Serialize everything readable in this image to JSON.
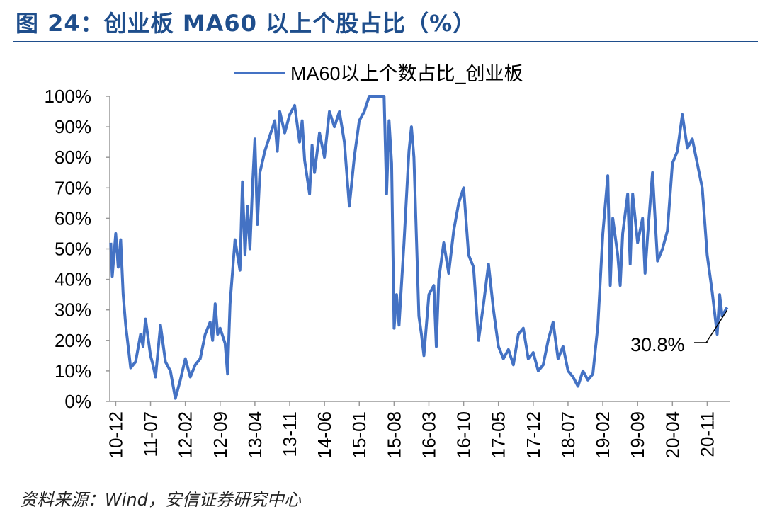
{
  "title": "图 24：创业板 MA60 以上个股占比（%）",
  "source": "资料来源：Wind，安信证券研究中心",
  "colors": {
    "series": "#4472C4",
    "title": "#1f4e8c"
  },
  "chart_data": {
    "type": "line",
    "legend": "top-center",
    "grid": false,
    "series": [
      {
        "name": "MA60以上个数占比_创业板",
        "points": [
          [
            "10-11",
            52
          ],
          [
            "10-11.3",
            41
          ],
          [
            "10-12",
            55
          ],
          [
            "10-12.5",
            44
          ],
          [
            "11-01",
            53
          ],
          [
            "11-01.5",
            35
          ],
          [
            "11-02",
            25
          ],
          [
            "11-02.5",
            18
          ],
          [
            "11-03",
            11
          ],
          [
            "11-04",
            13
          ],
          [
            "11-05",
            22
          ],
          [
            "11-05.5",
            18
          ],
          [
            "11-06",
            27
          ],
          [
            "11-07",
            15
          ],
          [
            "11-07.5",
            12
          ],
          [
            "11-08",
            8
          ],
          [
            "11-09",
            25
          ],
          [
            "11-10",
            13
          ],
          [
            "11-11",
            10
          ],
          [
            "11-12",
            1
          ],
          [
            "12-01",
            7
          ],
          [
            "12-02",
            14
          ],
          [
            "12-03",
            8
          ],
          [
            "12-04",
            12
          ],
          [
            "12-05",
            14
          ],
          [
            "12-06",
            22
          ],
          [
            "12-07",
            26
          ],
          [
            "12-07.5",
            20
          ],
          [
            "12-08",
            32
          ],
          [
            "12-08.5",
            22
          ],
          [
            "12-09",
            24
          ],
          [
            "12-10",
            19
          ],
          [
            "12-10.5",
            9
          ],
          [
            "12-11",
            32
          ],
          [
            "12-12",
            53
          ],
          [
            "13-01",
            43
          ],
          [
            "13-01.5",
            72
          ],
          [
            "13-02",
            48
          ],
          [
            "13-02.5",
            64
          ],
          [
            "13-03",
            50
          ],
          [
            "13-03.5",
            70
          ],
          [
            "13-04",
            86
          ],
          [
            "13-04.5",
            58
          ],
          [
            "13-05",
            75
          ],
          [
            "13-06",
            82
          ],
          [
            "13-07",
            87
          ],
          [
            "13-08",
            92
          ],
          [
            "13-08.5",
            82
          ],
          [
            "13-09",
            95
          ],
          [
            "13-10",
            88
          ],
          [
            "13-11",
            94
          ],
          [
            "13-12",
            97
          ],
          [
            "14-01",
            85
          ],
          [
            "14-01.5",
            92
          ],
          [
            "14-02",
            79
          ],
          [
            "14-03",
            68
          ],
          [
            "14-03.5",
            84
          ],
          [
            "14-04",
            75
          ],
          [
            "14-05",
            88
          ],
          [
            "14-06",
            80
          ],
          [
            "14-07",
            95
          ],
          [
            "14-08",
            90
          ],
          [
            "14-09",
            95
          ],
          [
            "14-10",
            85
          ],
          [
            "14-11",
            64
          ],
          [
            "14-12",
            80
          ],
          [
            "15-01",
            92
          ],
          [
            "15-02",
            95
          ],
          [
            "15-03",
            100
          ],
          [
            "15-04",
            100
          ],
          [
            "15-05",
            100
          ],
          [
            "15-06",
            100
          ],
          [
            "15-06.5",
            68
          ],
          [
            "15-07",
            92
          ],
          [
            "15-07.5",
            78
          ],
          [
            "15-08",
            24
          ],
          [
            "15-08.5",
            35
          ],
          [
            "15-09",
            25
          ],
          [
            "15-10",
            52
          ],
          [
            "15-11",
            82
          ],
          [
            "15-11.5",
            90
          ],
          [
            "15-12",
            80
          ],
          [
            "16-01",
            28
          ],
          [
            "16-01.5",
            22
          ],
          [
            "16-02",
            15
          ],
          [
            "16-03",
            35
          ],
          [
            "16-04",
            38
          ],
          [
            "16-04.5",
            18
          ],
          [
            "16-05",
            40
          ],
          [
            "16-06",
            52
          ],
          [
            "16-07",
            42
          ],
          [
            "16-08",
            56
          ],
          [
            "16-09",
            65
          ],
          [
            "16-10",
            70
          ],
          [
            "16-11",
            48
          ],
          [
            "16-12",
            44
          ],
          [
            "17-01",
            20
          ],
          [
            "17-02",
            32
          ],
          [
            "17-03",
            45
          ],
          [
            "17-04",
            30
          ],
          [
            "17-05",
            18
          ],
          [
            "17-06",
            14
          ],
          [
            "17-07",
            17
          ],
          [
            "17-08",
            12
          ],
          [
            "17-09",
            22
          ],
          [
            "17-10",
            24
          ],
          [
            "17-11",
            14
          ],
          [
            "17-12",
            16
          ],
          [
            "18-01",
            10
          ],
          [
            "18-02",
            12
          ],
          [
            "18-03",
            20
          ],
          [
            "18-04",
            26
          ],
          [
            "18-05",
            14
          ],
          [
            "18-06",
            18
          ],
          [
            "18-07",
            10
          ],
          [
            "18-08",
            8
          ],
          [
            "18-09",
            5
          ],
          [
            "18-10",
            10
          ],
          [
            "18-11",
            7
          ],
          [
            "18-12",
            9
          ],
          [
            "19-01",
            25
          ],
          [
            "19-02",
            55
          ],
          [
            "19-03",
            74
          ],
          [
            "19-03.5",
            38
          ],
          [
            "19-04",
            60
          ],
          [
            "19-05",
            48
          ],
          [
            "19-05.5",
            38
          ],
          [
            "19-06",
            55
          ],
          [
            "19-07",
            68
          ],
          [
            "19-07.5",
            45
          ],
          [
            "19-08",
            68
          ],
          [
            "19-09",
            52
          ],
          [
            "19-10",
            60
          ],
          [
            "19-10.5",
            42
          ],
          [
            "19-11",
            54
          ],
          [
            "19-12",
            75
          ],
          [
            "20-01",
            46
          ],
          [
            "20-02",
            50
          ],
          [
            "20-03",
            56
          ],
          [
            "20-04",
            78
          ],
          [
            "20-05",
            82
          ],
          [
            "20-06",
            94
          ],
          [
            "20-07",
            83
          ],
          [
            "20-08",
            86
          ],
          [
            "20-09",
            78
          ],
          [
            "20-10",
            70
          ],
          [
            "20-11",
            48
          ],
          [
            "20-12",
            36
          ],
          [
            "21-01",
            22
          ],
          [
            "21-01.5",
            35
          ],
          [
            "21-02",
            28
          ],
          [
            "21-03",
            30.8
          ]
        ]
      }
    ],
    "x_ticks": [
      "10-12",
      "11-07",
      "12-02",
      "12-09",
      "13-04",
      "13-11",
      "14-06",
      "15-01",
      "15-08",
      "16-03",
      "16-10",
      "17-05",
      "17-12",
      "18-07",
      "19-02",
      "19-09",
      "20-04",
      "20-11"
    ],
    "y_ticks": [
      "0%",
      "10%",
      "20%",
      "30%",
      "40%",
      "50%",
      "60%",
      "70%",
      "80%",
      "90%",
      "100%"
    ],
    "ylim": [
      0,
      100
    ],
    "annotation": "30.8%"
  }
}
